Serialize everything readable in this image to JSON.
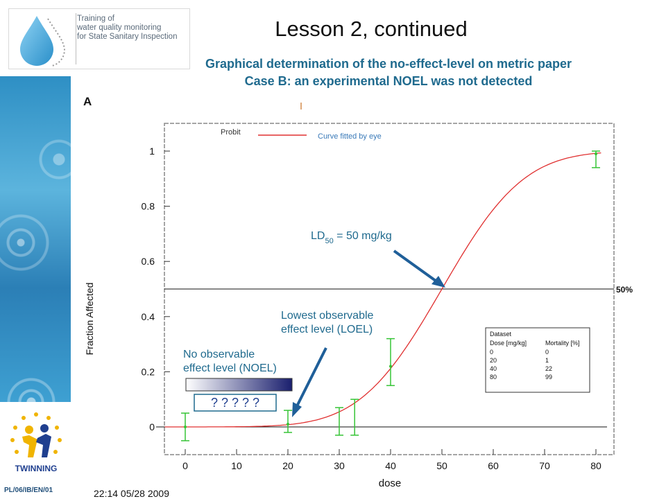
{
  "slide": {
    "title": "Lesson 2, continued",
    "subtitle_line1": "Graphical determination of the no-effect-level on metric paper",
    "subtitle_line2": "Case B: an experimental NOEL was not detected",
    "logo_text": [
      "Training of",
      "water quality monitoring",
      "for State Sanitary Inspection"
    ],
    "twinning_label": "TWINNING",
    "footer_code": "PL/06/IB/EN/01",
    "colors": {
      "accent": "#1f6a8e",
      "arrow": "#1f5f99",
      "curve": "#e03030",
      "errorbar": "#35c435"
    }
  },
  "chart_data": {
    "type": "line",
    "panel_label": "A",
    "legend_partial": "Probit",
    "xlabel": "dose",
    "ylabel": "Fraction Affected",
    "xlim": [
      -4,
      82
    ],
    "ylim": [
      -0.1,
      1.1
    ],
    "x_ticks": [
      0,
      10,
      20,
      30,
      40,
      50,
      60,
      70,
      80
    ],
    "y_ticks": [
      0,
      0.2,
      0.4,
      0.6,
      0.8,
      1
    ],
    "y_tick_labels": [
      "0",
      "0.2",
      "0.4",
      "0.6",
      "0.8",
      "1"
    ],
    "curve_label": "Curve  fitted by eye",
    "curve_mu": 50,
    "curve_sigma": 12.5,
    "points": [
      {
        "x": 0,
        "y": 0.0,
        "lo": -0.05,
        "hi": 0.05
      },
      {
        "x": 20,
        "y": 0.01,
        "lo": -0.02,
        "hi": 0.06
      },
      {
        "x": 40,
        "y": 0.22,
        "lo": 0.15,
        "hi": 0.32
      },
      {
        "x": 80,
        "y": 0.99,
        "lo": 0.94,
        "hi": 1.0
      }
    ],
    "extra_bars": [
      {
        "x": 30,
        "lo": -0.03,
        "hi": 0.07
      },
      {
        "x": 33,
        "lo": -0.03,
        "hi": 0.1
      }
    ],
    "fifty_percent_line": 0.5,
    "fifty_label": "50%",
    "timestamp": "22:14 05/28 2009",
    "ld50_label_prefix": "LD",
    "ld50_label_sub": "50",
    "ld50_label_suffix": " = 50 mg/kg",
    "loel_line1": "Lowest observable",
    "loel_line2": "effect level (LOEL)",
    "noel_line1": "No observable",
    "noel_line2": "effect level (NOEL)",
    "question_marks": "? ? ? ? ?",
    "dataset_table": {
      "title": "Dataset",
      "headers": [
        "Dose [mg/kg]",
        "Mortality [%]"
      ],
      "rows": [
        [
          "0",
          "0"
        ],
        [
          "20",
          "1"
        ],
        [
          "40",
          "22"
        ],
        [
          "80",
          "99"
        ]
      ]
    }
  }
}
